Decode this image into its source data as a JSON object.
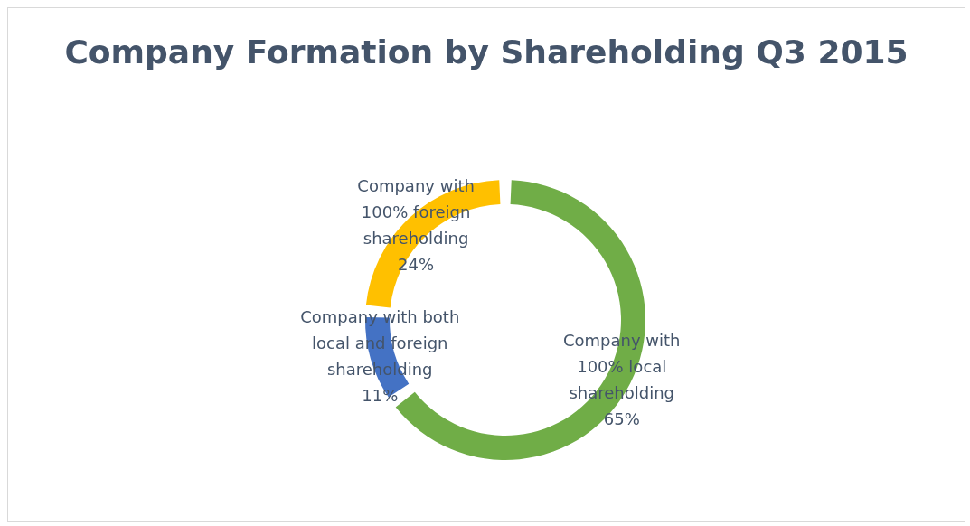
{
  "chart_data": {
    "type": "donut",
    "title": "Company Formation by Shareholding Q3 2015",
    "categories": [
      "Company with\n100% local\nshareholding",
      "Company with both\nlocal and foreign\nshareholding",
      "Company with\n100% foreign\nshareholding"
    ],
    "values": [
      65,
      11,
      24
    ],
    "colors": [
      "#70ad47",
      "#4472c4",
      "#ffc000"
    ],
    "value_labels": [
      "65%",
      "11%",
      "24%"
    ],
    "legend": false
  }
}
